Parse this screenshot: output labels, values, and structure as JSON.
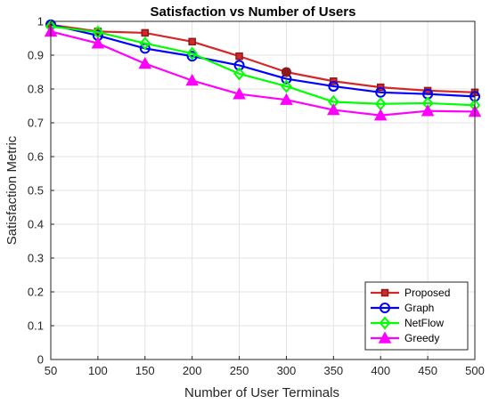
{
  "chart_data": {
    "type": "line",
    "title": "Satisfaction vs Number of Users",
    "xlabel": "Number of User Terminals",
    "ylabel": "Satisfaction Metric",
    "xlim": [
      50,
      500
    ],
    "ylim": [
      0,
      1
    ],
    "xticks": [
      50,
      100,
      150,
      200,
      250,
      300,
      350,
      400,
      450,
      500
    ],
    "yticks": [
      0,
      0.1,
      0.2,
      0.3,
      0.4,
      0.5,
      0.6,
      0.7,
      0.8,
      0.9,
      1
    ],
    "ytick_labels": [
      "0",
      "0.1",
      "0.2",
      "0.3",
      "0.4",
      "0.5",
      "0.6",
      "0.7",
      "0.8",
      "0.9",
      "1"
    ],
    "grid": true,
    "legend_position": "bottom-right",
    "x": [
      50,
      100,
      150,
      200,
      250,
      300,
      350,
      400,
      450,
      500
    ],
    "series": [
      {
        "name": "Proposed",
        "color": "#d62728",
        "marker": "square",
        "values": [
          0.99,
          0.97,
          0.966,
          0.94,
          0.897,
          0.85,
          0.823,
          0.805,
          0.795,
          0.79
        ]
      },
      {
        "name": "Graph",
        "color": "#0000ff",
        "marker": "circle",
        "values": [
          0.99,
          0.958,
          0.92,
          0.897,
          0.87,
          0.83,
          0.808,
          0.79,
          0.785,
          0.778
        ]
      },
      {
        "name": "NetFlow",
        "color": "#00ff00",
        "marker": "diamond",
        "values": [
          0.985,
          0.968,
          0.935,
          0.905,
          0.845,
          0.808,
          0.762,
          0.756,
          0.758,
          0.752
        ]
      },
      {
        "name": "Greedy",
        "color": "#ff00ff",
        "marker": "triangle",
        "values": [
          0.97,
          0.935,
          0.875,
          0.825,
          0.785,
          0.768,
          0.738,
          0.722,
          0.735,
          0.733
        ]
      }
    ],
    "annotations": [
      {
        "type": "highlight-point",
        "x": 300,
        "y": 0.85,
        "color": "#8b1a1a"
      }
    ]
  }
}
